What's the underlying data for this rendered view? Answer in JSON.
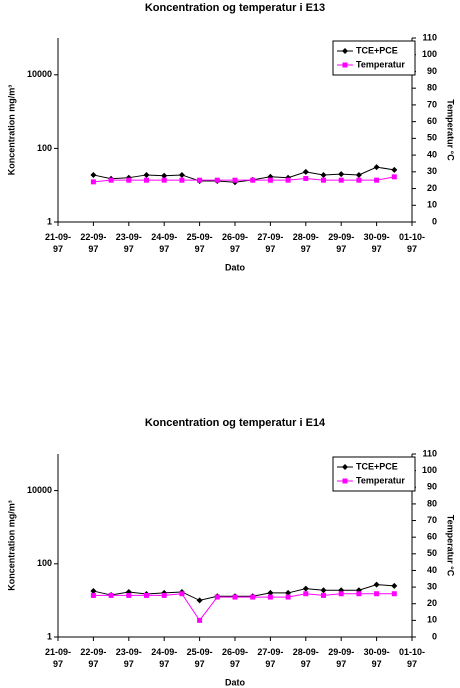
{
  "chart_data": [
    {
      "type": "line",
      "title": "Koncentration og temperatur i E13",
      "y_label": "Koncentration mg/m³",
      "y2_label": "Temperatur °C",
      "x_label": "Dato",
      "y_scale": "log",
      "ylim": [
        1,
        100000
      ],
      "yticks": [
        1,
        100,
        10000
      ],
      "y2lim": [
        0,
        110
      ],
      "y2ticks": [
        0,
        10,
        20,
        30,
        40,
        50,
        60,
        70,
        80,
        90,
        100,
        110
      ],
      "xlim": [
        21,
        31
      ],
      "xticks": [
        {
          "value": 21,
          "label": "21-09-97"
        },
        {
          "value": 22,
          "label": "22-09-97"
        },
        {
          "value": 23,
          "label": "23-09-97"
        },
        {
          "value": 24,
          "label": "24-09-97"
        },
        {
          "value": 25,
          "label": "25-09-97"
        },
        {
          "value": 26,
          "label": "26-09-97"
        },
        {
          "value": 27,
          "label": "27-09-97"
        },
        {
          "value": 28,
          "label": "28-09-97"
        },
        {
          "value": 29,
          "label": "29-09-97"
        },
        {
          "value": 30,
          "label": "30-09-97"
        },
        {
          "value": 31,
          "label": "01-10-97"
        }
      ],
      "x": [
        22,
        22.5,
        23,
        23.5,
        24,
        24.5,
        25,
        25.5,
        26,
        26.5,
        27,
        27.5,
        28,
        28.5,
        29,
        29.5,
        30,
        30.5
      ],
      "legend": "top-right",
      "series": [
        {
          "name": "TCE+PCE",
          "color": "#000000",
          "marker": "diamond",
          "values": [
            19,
            15,
            16,
            19,
            18,
            19,
            13,
            13,
            12,
            14,
            17,
            16,
            23,
            19,
            20,
            19,
            31,
            26
          ]
        },
        {
          "name": "Temperatur",
          "color": "#ff00ff",
          "marker": "square",
          "axis": "y2",
          "values": [
            24,
            25,
            25,
            25,
            25,
            25,
            25,
            25,
            25,
            25,
            25,
            25,
            26,
            25,
            25,
            25,
            25,
            27
          ]
        }
      ]
    },
    {
      "type": "line",
      "title": "Koncentration og temperatur i E14",
      "y_label": "Koncentration mg/m³",
      "y2_label": "Temperatur °C",
      "x_label": "Dato",
      "y_scale": "log",
      "ylim": [
        1,
        100000
      ],
      "yticks": [
        1,
        100,
        10000
      ],
      "y2lim": [
        0,
        110
      ],
      "y2ticks": [
        0,
        10,
        20,
        30,
        40,
        50,
        60,
        70,
        80,
        90,
        100,
        110
      ],
      "xlim": [
        21,
        31
      ],
      "xticks": [
        {
          "value": 21,
          "label": "21-09-97"
        },
        {
          "value": 22,
          "label": "22-09-97"
        },
        {
          "value": 23,
          "label": "23-09-97"
        },
        {
          "value": 24,
          "label": "24-09-97"
        },
        {
          "value": 25,
          "label": "25-09-97"
        },
        {
          "value": 26,
          "label": "26-09-97"
        },
        {
          "value": 27,
          "label": "27-09-97"
        },
        {
          "value": 28,
          "label": "28-09-97"
        },
        {
          "value": 29,
          "label": "29-09-97"
        },
        {
          "value": 30,
          "label": "30-09-97"
        },
        {
          "value": 31,
          "label": "01-10-97"
        }
      ],
      "x": [
        22,
        22.5,
        23,
        23.5,
        24,
        24.5,
        25,
        25.5,
        26,
        26.5,
        27,
        27.5,
        28,
        28.5,
        29,
        29.5,
        30,
        30.5
      ],
      "legend": "top-right",
      "series": [
        {
          "name": "TCE+PCE",
          "color": "#000000",
          "marker": "diamond",
          "values": [
            18,
            14,
            17,
            15,
            16,
            17,
            10,
            13,
            13,
            13,
            16,
            16,
            21,
            19,
            19,
            19,
            27,
            25
          ]
        },
        {
          "name": "Temperatur",
          "color": "#ff00ff",
          "marker": "square",
          "axis": "y2",
          "values": [
            25,
            25,
            25,
            25,
            25,
            26,
            10,
            24,
            24,
            24,
            24,
            24,
            26,
            25,
            26,
            26,
            26,
            26
          ]
        }
      ]
    }
  ]
}
